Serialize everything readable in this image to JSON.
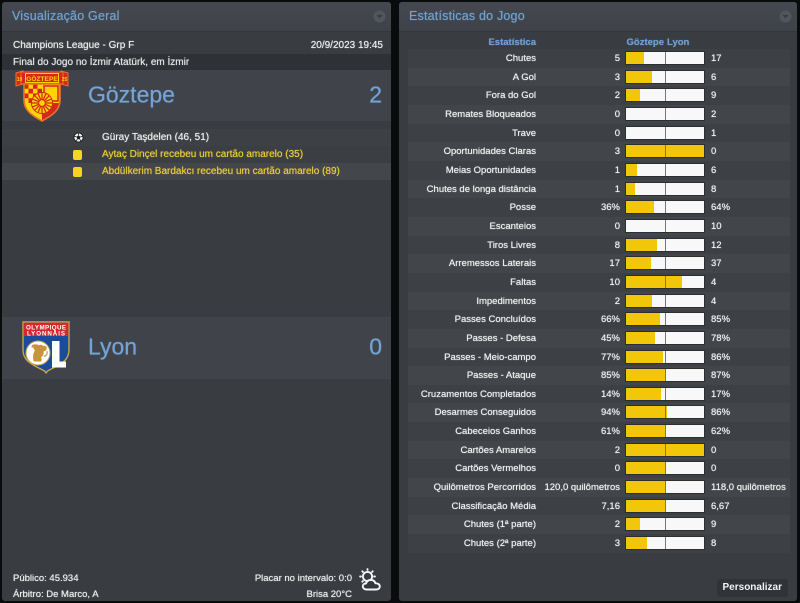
{
  "left_panel": {
    "title": "Visualização Geral",
    "competition": "Champions League - Grp F",
    "datetime": "20/9/2023 19:45",
    "venue_line": "Final do Jogo no İzmir Atatürk, em İzmir",
    "home_team": {
      "name": "Göztepe",
      "score": "2"
    },
    "away_team": {
      "name": "Lyon",
      "score": "0"
    },
    "events": [
      {
        "type": "goal",
        "text": "Güray Taşdelen (46, 51)"
      },
      {
        "type": "yellow-card",
        "text": "Aytaç Dinçel recebeu um cartão amarelo (35)"
      },
      {
        "type": "yellow-card",
        "text": "Abdülkerim Bardakcı recebeu um cartão amarelo (89)"
      }
    ],
    "footer": {
      "attendance": "Público: 45.934",
      "referee": "Árbitro: De Marco, A",
      "halftime_score": "Placar no intervalo: 0:0",
      "weather": "Brisa 20°C",
      "weather_icon": "sun-behind-cloud-icon"
    }
  },
  "right_panel": {
    "title": "Estatísticas do Jogo",
    "columns": {
      "stat": "Estatística",
      "home": "Göztepe",
      "away": "Lyon"
    },
    "customize_button": "Personalizar",
    "colors": {
      "home_bar": "#f2c609",
      "away_bar": "#f8f8f8"
    }
  },
  "chart_data": {
    "type": "bar",
    "title": "Estatísticas do Jogo",
    "series_names": [
      "Göztepe",
      "Lyon"
    ],
    "rows": [
      {
        "label": "Chutes",
        "home": "5",
        "away": "17",
        "home_num": 5,
        "away_num": 17
      },
      {
        "label": "A Gol",
        "home": "3",
        "away": "6",
        "home_num": 3,
        "away_num": 6
      },
      {
        "label": "Fora do Gol",
        "home": "2",
        "away": "9",
        "home_num": 2,
        "away_num": 9
      },
      {
        "label": "Remates Bloqueados",
        "home": "0",
        "away": "2",
        "home_num": 0,
        "away_num": 2
      },
      {
        "label": "Trave",
        "home": "0",
        "away": "1",
        "home_num": 0,
        "away_num": 1
      },
      {
        "label": "Oportunidades Claras",
        "home": "3",
        "away": "0",
        "home_num": 3,
        "away_num": 0
      },
      {
        "label": "Meias Oportunidades",
        "home": "1",
        "away": "6",
        "home_num": 1,
        "away_num": 6
      },
      {
        "label": "Chutes de longa distância",
        "home": "1",
        "away": "8",
        "home_num": 1,
        "away_num": 8
      },
      {
        "label": "Posse",
        "home": "36%",
        "away": "64%",
        "home_num": 36,
        "away_num": 64
      },
      {
        "label": "Escanteios",
        "home": "0",
        "away": "10",
        "home_num": 0,
        "away_num": 10
      },
      {
        "label": "Tiros Livres",
        "home": "8",
        "away": "12",
        "home_num": 8,
        "away_num": 12
      },
      {
        "label": "Arremessos Laterais",
        "home": "17",
        "away": "37",
        "home_num": 17,
        "away_num": 37
      },
      {
        "label": "Faltas",
        "home": "10",
        "away": "4",
        "home_num": 10,
        "away_num": 4
      },
      {
        "label": "Impedimentos",
        "home": "2",
        "away": "4",
        "home_num": 2,
        "away_num": 4
      },
      {
        "label": "Passes Concluídos",
        "home": "66%",
        "away": "85%",
        "home_num": 66,
        "away_num": 85
      },
      {
        "label": "Passes - Defesa",
        "home": "45%",
        "away": "78%",
        "home_num": 45,
        "away_num": 78
      },
      {
        "label": "Passes - Meio-campo",
        "home": "77%",
        "away": "86%",
        "home_num": 77,
        "away_num": 86
      },
      {
        "label": "Passes - Ataque",
        "home": "85%",
        "away": "87%",
        "home_num": 85,
        "away_num": 87
      },
      {
        "label": "Cruzamentos Completados",
        "home": "14%",
        "away": "17%",
        "home_num": 14,
        "away_num": 17
      },
      {
        "label": "Desarmes Conseguidos",
        "home": "94%",
        "away": "86%",
        "home_num": 94,
        "away_num": 86
      },
      {
        "label": "Cabeceios Ganhos",
        "home": "61%",
        "away": "62%",
        "home_num": 61,
        "away_num": 62
      },
      {
        "label": "Cartões Amarelos",
        "home": "2",
        "away": "0",
        "home_num": 2,
        "away_num": 0
      },
      {
        "label": "Cartões Vermelhos",
        "home": "0",
        "away": "0",
        "home_num": 0,
        "away_num": 0
      },
      {
        "label": "Quilômetros Percorridos",
        "home": "120,0 quilômetros",
        "away": "118,0 quilômetros",
        "home_num": 120,
        "away_num": 118
      },
      {
        "label": "Classificação Média",
        "home": "7,16",
        "away": "6,67",
        "home_num": 7.16,
        "away_num": 6.67
      },
      {
        "label": "Chutes (1ª parte)",
        "home": "2",
        "away": "9",
        "home_num": 2,
        "away_num": 9
      },
      {
        "label": "Chutes (2ª parte)",
        "home": "3",
        "away": "8",
        "home_num": 3,
        "away_num": 8
      }
    ]
  }
}
